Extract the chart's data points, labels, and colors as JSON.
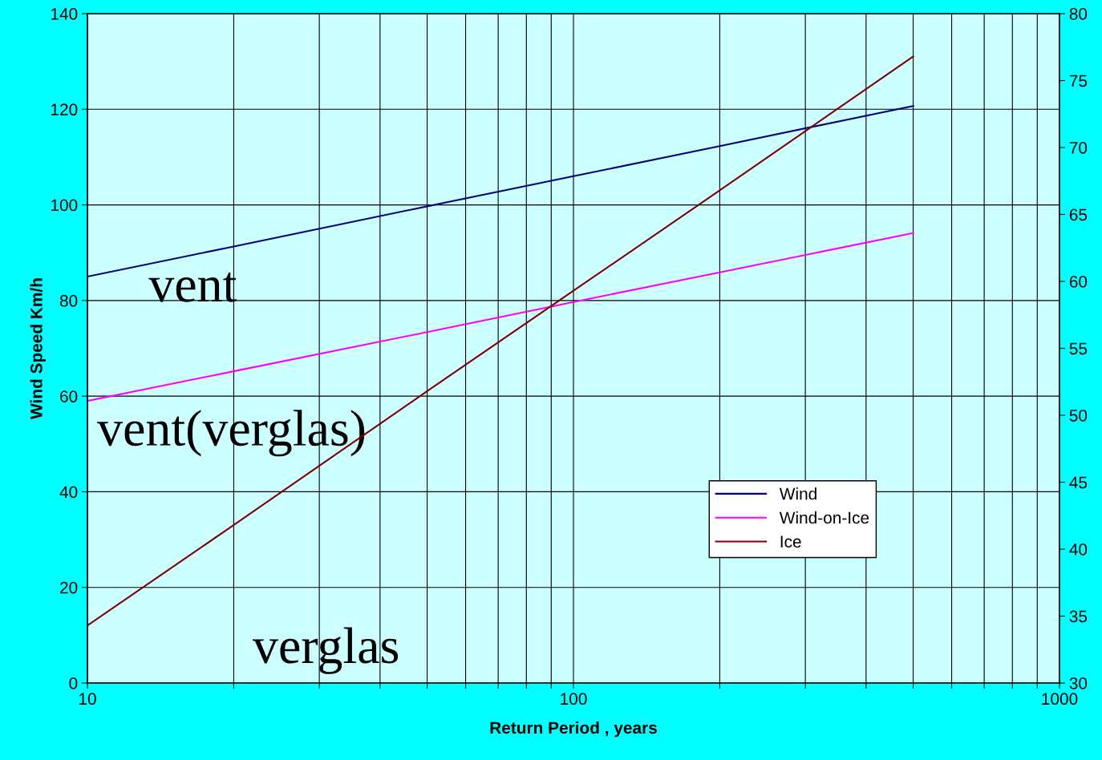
{
  "chart_data": {
    "type": "line",
    "xlabel": "Return Period , years",
    "ylabel": "Wind Speed Km/h",
    "log": "x",
    "grid": true,
    "legend": "bottom right",
    "marker": "none",
    "line_style": "solid",
    "x": [
      10,
      20,
      50,
      100,
      200,
      500
    ],
    "series": [
      {
        "name": "Wind",
        "color": "#000080",
        "values": [
          85,
          91.3,
          99.7,
          106,
          112.3,
          120.7
        ]
      },
      {
        "name": "Wind-on-Ice",
        "color": "#ff00ff",
        "values": [
          59,
          65.2,
          73.4,
          79.7,
          85.9,
          94.1
        ]
      },
      {
        "name": "Ice",
        "color": "#800000",
        "axis": "y2",
        "values": [
          34.3,
          41.8,
          51.8,
          59.3,
          66.8,
          76.8
        ]
      }
    ],
    "xlim": [
      10,
      1000
    ],
    "xticks": [
      10,
      {
        "value": 20,
        "label": null
      },
      {
        "value": 30,
        "label": null
      },
      {
        "value": 40,
        "label": null
      },
      {
        "value": 50,
        "label": null
      },
      {
        "value": 60,
        "label": null
      },
      {
        "value": 70,
        "label": null
      },
      {
        "value": 80,
        "label": null
      },
      {
        "value": 90,
        "label": null
      },
      100,
      {
        "value": 200,
        "label": null
      },
      {
        "value": 300,
        "label": null
      },
      {
        "value": 400,
        "label": null
      },
      {
        "value": 500,
        "label": null
      },
      {
        "value": 600,
        "label": null
      },
      {
        "value": 700,
        "label": null
      },
      {
        "value": 800,
        "label": null
      },
      {
        "value": 900,
        "label": null
      },
      1000
    ],
    "ylim": [
      0,
      140
    ],
    "yticks": [
      0,
      20,
      40,
      60,
      80,
      100,
      120,
      140
    ],
    "y2lim": [
      30,
      80
    ],
    "y2ticks": [
      30,
      35,
      40,
      45,
      50,
      55,
      60,
      65,
      70,
      75,
      80
    ],
    "annotations": [
      "vent",
      "vent(verglas)",
      "verglas"
    ]
  }
}
